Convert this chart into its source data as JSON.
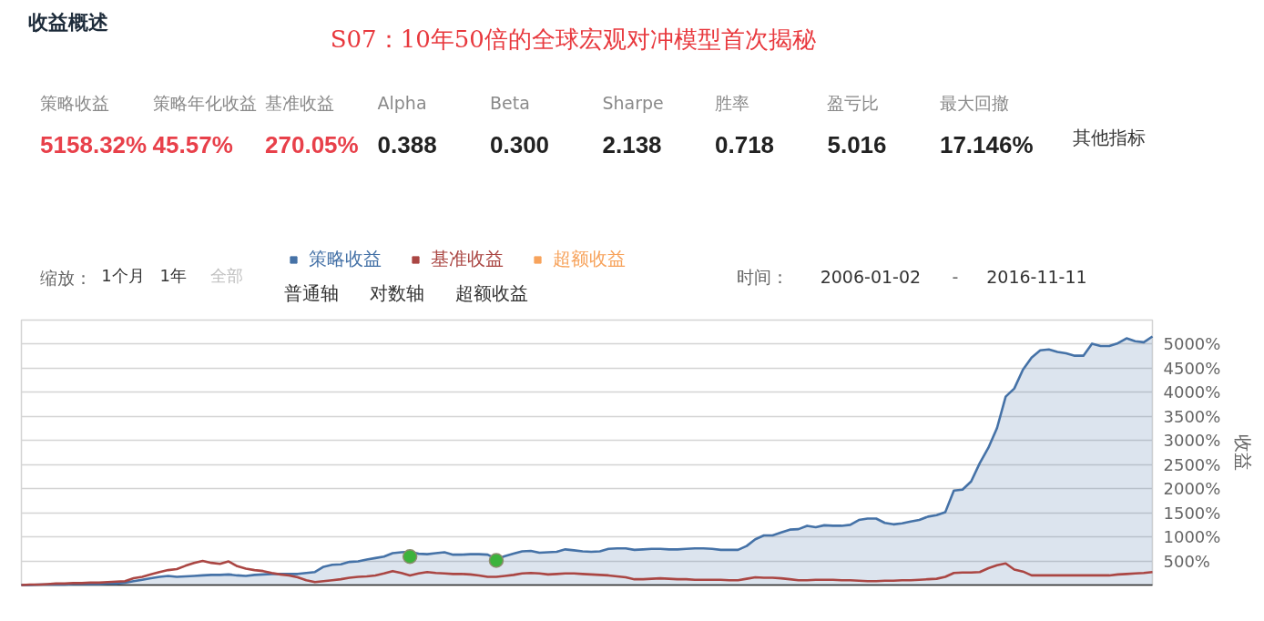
{
  "chart_data": {
    "type": "line",
    "title": "S07：10年50倍的全球宏观对冲模型首次揭秘",
    "ylabel": "收益",
    "annotations": [
      "收益概述",
      "策略收益",
      "5158.32%",
      "策略年化收益",
      "45.57%",
      "基准收益",
      "270.05%",
      "Alpha",
      "0.388",
      "Beta",
      "0.300",
      "Sharpe",
      "2.138",
      "胜率",
      "0.718",
      "盈亏比",
      "5.016",
      "最大回撤",
      "17.146%",
      "其他指标",
      "缩放：",
      "1个月",
      "1年",
      "全部",
      "普通轴",
      "对数轴",
      "超额收益",
      "时间：",
      "2006-01-02",
      "-",
      "2016-11-11"
    ],
    "categories": [
      null,
      null,
      null,
      null,
      null,
      null,
      null,
      null,
      null,
      null,
      null,
      null,
      null,
      null,
      null,
      null,
      null,
      null,
      null,
      null,
      null,
      null,
      null,
      null,
      null,
      null,
      null,
      null,
      null,
      null,
      null,
      null,
      null,
      null,
      null,
      null,
      null,
      null,
      null,
      null,
      null,
      null,
      null,
      null,
      null,
      null,
      null,
      null,
      null,
      null,
      null,
      null,
      null,
      null,
      null,
      null,
      null,
      null,
      null,
      null,
      null,
      null,
      null,
      null,
      null,
      null,
      null,
      null,
      null,
      null,
      null,
      null,
      null,
      null,
      null,
      null,
      null,
      null,
      null,
      null,
      null,
      null,
      null,
      null,
      null,
      null,
      null,
      null,
      null,
      null,
      null,
      null,
      null,
      null,
      null,
      null,
      null,
      null,
      null,
      null,
      null,
      null,
      null,
      null,
      null,
      null,
      null,
      null,
      null,
      null,
      null,
      null,
      null,
      null,
      null,
      null,
      null,
      null,
      null,
      null,
      null,
      null,
      null,
      null,
      null,
      null,
      null,
      null,
      null,
      null,
      null,
      null
    ],
    "series": [
      {
        "name": "策略收益",
        "type": "area",
        "color": "#4572a7",
        "values": [
          0,
          0,
          10,
          10,
          10,
          10,
          20,
          20,
          20,
          20,
          30,
          30,
          50,
          80,
          110,
          140,
          170,
          190,
          170,
          180,
          190,
          200,
          210,
          210,
          220,
          200,
          190,
          210,
          220,
          230,
          230,
          230,
          230,
          250,
          270,
          380,
          420,
          430,
          480,
          490,
          530,
          560,
          590,
          660,
          680,
          690,
          650,
          640,
          660,
          680,
          630,
          630,
          640,
          640,
          630,
          540,
          600,
          650,
          700,
          710,
          670,
          680,
          690,
          740,
          720,
          700,
          690,
          700,
          750,
          760,
          760,
          730,
          740,
          750,
          750,
          740,
          740,
          750,
          760,
          760,
          750,
          730,
          730,
          730,
          810,
          950,
          1030,
          1030,
          1090,
          1150,
          1160,
          1230,
          1200,
          1240,
          1230,
          1230,
          1250,
          1350,
          1380,
          1380,
          1290,
          1260,
          1280,
          1320,
          1350,
          1420,
          1450,
          1510,
          1960,
          1980,
          2150,
          2530,
          2850,
          3260,
          3910,
          4080,
          4470,
          4720,
          4870,
          4890,
          4840,
          4810,
          4760,
          4760,
          5010,
          4960,
          4960,
          5020,
          5120,
          5060,
          5040,
          5160
        ]
      },
      {
        "name": "基准收益",
        "color": "#aa4643",
        "values": [
          0,
          10,
          10,
          20,
          30,
          30,
          40,
          40,
          50,
          50,
          60,
          70,
          80,
          140,
          170,
          220,
          270,
          310,
          330,
          400,
          460,
          500,
          460,
          440,
          490,
          390,
          340,
          310,
          290,
          250,
          220,
          200,
          160,
          100,
          60,
          80,
          100,
          120,
          150,
          170,
          180,
          200,
          240,
          290,
          250,
          200,
          240,
          270,
          250,
          240,
          230,
          230,
          220,
          200,
          170,
          170,
          190,
          210,
          240,
          250,
          240,
          220,
          230,
          240,
          240,
          230,
          220,
          210,
          200,
          180,
          160,
          120,
          120,
          130,
          140,
          130,
          120,
          120,
          110,
          110,
          110,
          110,
          100,
          100,
          130,
          160,
          150,
          150,
          140,
          120,
          100,
          100,
          110,
          110,
          110,
          100,
          100,
          90,
          80,
          80,
          90,
          90,
          100,
          100,
          110,
          120,
          130,
          170,
          250,
          260,
          260,
          270,
          350,
          410,
          450,
          320,
          280,
          200,
          200,
          200,
          200,
          200,
          200,
          200,
          200,
          200,
          200,
          220,
          230,
          240,
          250,
          270
        ]
      },
      {
        "name": "超额收益",
        "color": "#f7a35c",
        "values": [
          null,
          null,
          null,
          null,
          null,
          null,
          null,
          null,
          null,
          null,
          null,
          null,
          null,
          null,
          null,
          null,
          null,
          null,
          null,
          null,
          null,
          null,
          null,
          null,
          null,
          null,
          null,
          null,
          null,
          null,
          null,
          null,
          null,
          null,
          null,
          null,
          null,
          null,
          null,
          null,
          null,
          null,
          null,
          null,
          null,
          null,
          null,
          null,
          null,
          null,
          null,
          null,
          null,
          null,
          null,
          null,
          null,
          null,
          null,
          null,
          null,
          null,
          null,
          null,
          null,
          null,
          null,
          null,
          null,
          null,
          null,
          null,
          null,
          null,
          null,
          null,
          null,
          null,
          null,
          null,
          null,
          null,
          null,
          null,
          null,
          null,
          null,
          null,
          null,
          null,
          null,
          null,
          null,
          null,
          null,
          null,
          null,
          null,
          null,
          null,
          null,
          null,
          null,
          null,
          null,
          null,
          null,
          null,
          null,
          null,
          null,
          null,
          null,
          null,
          null,
          null,
          null,
          null,
          null,
          null,
          null,
          null,
          null,
          null,
          null,
          null,
          null,
          null,
          null,
          null,
          null,
          null
        ]
      },
      {
        "type": "scatter",
        "color": "#3cb33c",
        "marker": "circle",
        "values": [
          null,
          null,
          null,
          null,
          null,
          null,
          null,
          null,
          null,
          null,
          null,
          null,
          null,
          null,
          null,
          null,
          null,
          null,
          null,
          null,
          null,
          null,
          null,
          null,
          null,
          null,
          null,
          null,
          null,
          null,
          null,
          null,
          null,
          null,
          null,
          null,
          null,
          null,
          null,
          null,
          null,
          null,
          null,
          null,
          null,
          590,
          null,
          null,
          null,
          null,
          null,
          null,
          null,
          null,
          null,
          510,
          null,
          null,
          null,
          null,
          null,
          null,
          null,
          null,
          null,
          null,
          null,
          null,
          null,
          null,
          null,
          null,
          null,
          null,
          null,
          null,
          null,
          null,
          null,
          null,
          null,
          null,
          null,
          null,
          null,
          null,
          null,
          null,
          null,
          null,
          null,
          null,
          null,
          null,
          null,
          null,
          null,
          null,
          null,
          null,
          null,
          null,
          null,
          null,
          null,
          null,
          null,
          null,
          null,
          null,
          null,
          null,
          null,
          null,
          null,
          null,
          null,
          null,
          null,
          null,
          null,
          null,
          null,
          null,
          null,
          null,
          null,
          null,
          null,
          null,
          null,
          null
        ]
      }
    ],
    "ylim": [
      0,
      5500
    ],
    "yticks": [
      {
        "value": 500,
        "label": "500%"
      },
      {
        "value": 1000,
        "label": "1000%"
      },
      {
        "value": 1500,
        "label": "1500%"
      },
      {
        "value": 2000,
        "label": "2000%"
      },
      {
        "value": 2500,
        "label": "2500%"
      },
      {
        "value": 3000,
        "label": "3000%"
      },
      {
        "value": 3500,
        "label": "3500%"
      },
      {
        "value": 4000,
        "label": "4000%"
      },
      {
        "value": 4500,
        "label": "4500%"
      },
      {
        "value": 5000,
        "label": "5000%"
      }
    ],
    "tick_labels": "y",
    "grid": "y",
    "legend": "top left",
    "line_style": "solid"
  }
}
